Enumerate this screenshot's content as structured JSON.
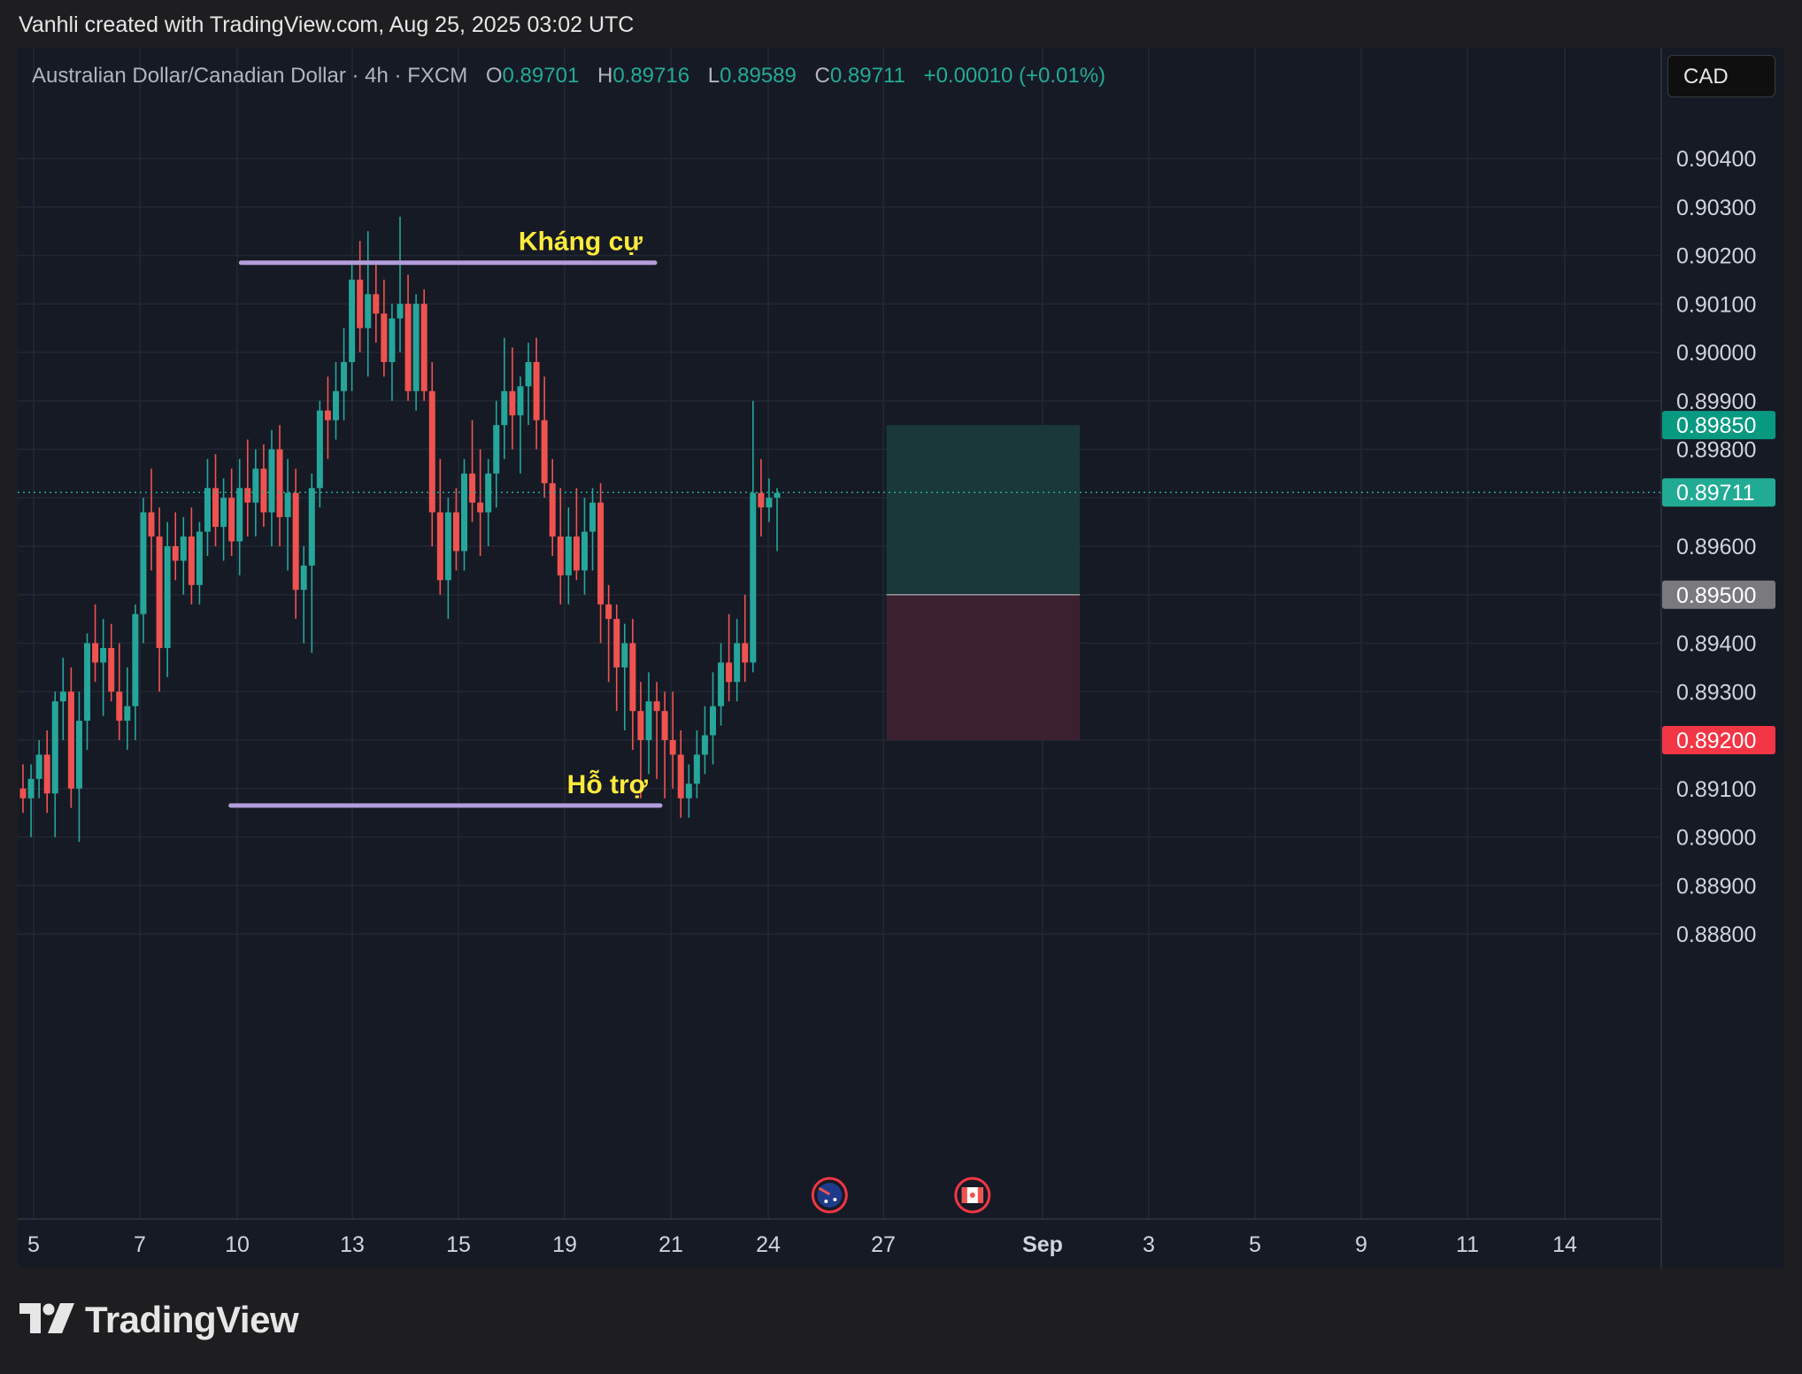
{
  "caption": "Vanhli created with TradingView.com, Aug 25, 2025 03:02 UTC",
  "legend": {
    "symbol": "Australian Dollar/Canadian Dollar · 4h · FXCM",
    "o_label": "O",
    "o": "0.89701",
    "h_label": "H",
    "h": "0.89716",
    "l_label": "L",
    "l": "0.89589",
    "c_label": "C",
    "c": "0.89711",
    "change": "+0.00010 (+0.01%)"
  },
  "currency": "CAD",
  "brand": "TradingView",
  "icons": [
    "australia-flag-event-icon",
    "canada-flag-event-icon",
    "tradingview-logo-icon"
  ],
  "colors": {
    "up": "#26a69a",
    "down": "#ef5350",
    "background": "#161a25",
    "level_line": "#b39ddb",
    "annotation": "#ffeb3b",
    "target_zone": "#1a3a3a",
    "stop_zone": "#3d2230"
  },
  "chart_data": {
    "type": "candlestick",
    "title": "Australian Dollar/Canadian Dollar · 4h · FXCM",
    "y_range": [
      0.8876,
      0.9048
    ],
    "y_ticks": [
      "0.90400",
      "0.90300",
      "0.90200",
      "0.90100",
      "0.90000",
      "0.89900",
      "0.89800",
      "0.89600",
      "0.89400",
      "0.89300",
      "0.89100",
      "0.89000",
      "0.88900",
      "0.88800"
    ],
    "x_ticks": [
      {
        "label": "5",
        "day": 5
      },
      {
        "label": "7",
        "day": 7
      },
      {
        "label": "10",
        "day": 10
      },
      {
        "label": "13",
        "day": 13
      },
      {
        "label": "15",
        "day": 15
      },
      {
        "label": "19",
        "day": 19
      },
      {
        "label": "21",
        "day": 21
      },
      {
        "label": "24",
        "day": 24
      },
      {
        "label": "27",
        "day": 27
      },
      {
        "label": "Sep",
        "day": 32,
        "bold": true
      },
      {
        "label": "3",
        "day": 34
      },
      {
        "label": "5",
        "day": 36
      },
      {
        "label": "9",
        "day": 38
      },
      {
        "label": "11",
        "day": 40
      },
      {
        "label": "14",
        "day": 42
      }
    ],
    "price_tags": [
      {
        "value": 0.8985,
        "label": "0.89850",
        "color": "#089981"
      },
      {
        "value": 0.89711,
        "label": "0.89711",
        "color": "#22ab94"
      },
      {
        "value": 0.895,
        "label": "0.89500",
        "color": "#7a7a7e"
      },
      {
        "value": 0.892,
        "label": "0.89200",
        "color": "#f23645"
      }
    ],
    "last_price": 0.89711,
    "levels": [
      {
        "label": "Kháng cự",
        "value": 0.90185,
        "x_from": 10.1,
        "x_to": 20.7
      },
      {
        "label": "Hỗ trợ",
        "value": 0.89065,
        "x_from": 9.8,
        "x_to": 20.8
      }
    ],
    "position": {
      "x_from": 27.1,
      "x_to": 32.7,
      "target": 0.8985,
      "entry": 0.895,
      "stop": 0.892
    },
    "events": [
      {
        "icon": "australia-flag-event-icon",
        "day": 25.6
      },
      {
        "icon": "canada-flag-event-icon",
        "day": 29.8
      }
    ],
    "candles": [
      [
        0.891,
        0.8915,
        0.8905,
        0.8908
      ],
      [
        0.8908,
        0.8915,
        0.89,
        0.8912
      ],
      [
        0.8912,
        0.892,
        0.8908,
        0.8917
      ],
      [
        0.8917,
        0.8922,
        0.8905,
        0.8909
      ],
      [
        0.8909,
        0.893,
        0.89,
        0.8928
      ],
      [
        0.8928,
        0.8937,
        0.892,
        0.893
      ],
      [
        0.893,
        0.8935,
        0.8906,
        0.891
      ],
      [
        0.891,
        0.893,
        0.8899,
        0.8924
      ],
      [
        0.8924,
        0.8942,
        0.8918,
        0.894
      ],
      [
        0.894,
        0.8948,
        0.8932,
        0.8936
      ],
      [
        0.8936,
        0.8945,
        0.8925,
        0.8939
      ],
      [
        0.8939,
        0.8944,
        0.8928,
        0.893
      ],
      [
        0.893,
        0.894,
        0.892,
        0.8924
      ],
      [
        0.8924,
        0.8935,
        0.8918,
        0.8927
      ],
      [
        0.8927,
        0.8948,
        0.892,
        0.8946
      ],
      [
        0.8946,
        0.897,
        0.894,
        0.8967
      ],
      [
        0.8967,
        0.8976,
        0.8955,
        0.8962
      ],
      [
        0.8962,
        0.8968,
        0.893,
        0.8939
      ],
      [
        0.8939,
        0.8965,
        0.8933,
        0.896
      ],
      [
        0.896,
        0.8967,
        0.8953,
        0.8957
      ],
      [
        0.8957,
        0.8966,
        0.895,
        0.8962
      ],
      [
        0.8962,
        0.8968,
        0.8948,
        0.8952
      ],
      [
        0.8952,
        0.8965,
        0.8948,
        0.8963
      ],
      [
        0.8963,
        0.8978,
        0.8958,
        0.8972
      ],
      [
        0.8972,
        0.8979,
        0.896,
        0.8964
      ],
      [
        0.8964,
        0.8974,
        0.8957,
        0.897
      ],
      [
        0.897,
        0.8976,
        0.8958,
        0.8961
      ],
      [
        0.8961,
        0.8978,
        0.8954,
        0.8972
      ],
      [
        0.8972,
        0.8982,
        0.8962,
        0.8969
      ],
      [
        0.8969,
        0.898,
        0.8962,
        0.8976
      ],
      [
        0.8976,
        0.8981,
        0.8964,
        0.8967
      ],
      [
        0.8967,
        0.8984,
        0.896,
        0.898
      ],
      [
        0.898,
        0.8985,
        0.896,
        0.8966
      ],
      [
        0.8966,
        0.8978,
        0.8955,
        0.8971
      ],
      [
        0.8971,
        0.8976,
        0.8945,
        0.8951
      ],
      [
        0.8951,
        0.896,
        0.894,
        0.8956
      ],
      [
        0.8956,
        0.8975,
        0.8938,
        0.8972
      ],
      [
        0.8972,
        0.899,
        0.8968,
        0.8988
      ],
      [
        0.8988,
        0.8995,
        0.8978,
        0.8986
      ],
      [
        0.8986,
        0.8998,
        0.8982,
        0.8992
      ],
      [
        0.8992,
        0.9005,
        0.8986,
        0.8998
      ],
      [
        0.8998,
        0.9018,
        0.8992,
        0.9015
      ],
      [
        0.9015,
        0.9023,
        0.9,
        0.9005
      ],
      [
        0.9005,
        0.9025,
        0.8995,
        0.9012
      ],
      [
        0.9012,
        0.9018,
        0.9002,
        0.9008
      ],
      [
        0.9008,
        0.9015,
        0.8995,
        0.8998
      ],
      [
        0.8998,
        0.901,
        0.899,
        0.9007
      ],
      [
        0.9007,
        0.9028,
        0.9,
        0.901
      ],
      [
        0.901,
        0.9016,
        0.899,
        0.8992
      ],
      [
        0.8992,
        0.9012,
        0.8988,
        0.901
      ],
      [
        0.901,
        0.9013,
        0.899,
        0.8992
      ],
      [
        0.8992,
        0.8998,
        0.896,
        0.8967
      ],
      [
        0.8967,
        0.8978,
        0.895,
        0.8953
      ],
      [
        0.8953,
        0.897,
        0.8945,
        0.8967
      ],
      [
        0.8967,
        0.8972,
        0.8955,
        0.8959
      ],
      [
        0.8959,
        0.8978,
        0.8955,
        0.8975
      ],
      [
        0.8975,
        0.8986,
        0.8965,
        0.8969
      ],
      [
        0.8969,
        0.898,
        0.8958,
        0.8967
      ],
      [
        0.8967,
        0.8978,
        0.896,
        0.8975
      ],
      [
        0.8975,
        0.899,
        0.8968,
        0.8985
      ],
      [
        0.8985,
        0.9003,
        0.8978,
        0.8992
      ],
      [
        0.8992,
        0.9001,
        0.898,
        0.8987
      ],
      [
        0.8987,
        0.8995,
        0.8975,
        0.8993
      ],
      [
        0.8993,
        0.9002,
        0.8985,
        0.8998
      ],
      [
        0.8998,
        0.9003,
        0.898,
        0.8986
      ],
      [
        0.8986,
        0.8995,
        0.897,
        0.8973
      ],
      [
        0.8973,
        0.8978,
        0.8958,
        0.8962
      ],
      [
        0.8962,
        0.8972,
        0.8948,
        0.8954
      ],
      [
        0.8954,
        0.8968,
        0.8948,
        0.8962
      ],
      [
        0.8962,
        0.8972,
        0.8953,
        0.8955
      ],
      [
        0.8955,
        0.897,
        0.895,
        0.8963
      ],
      [
        0.8963,
        0.8972,
        0.8955,
        0.8969
      ],
      [
        0.8969,
        0.8973,
        0.894,
        0.8948
      ],
      [
        0.8948,
        0.8952,
        0.8932,
        0.8945
      ],
      [
        0.8945,
        0.8948,
        0.8926,
        0.8935
      ],
      [
        0.8935,
        0.8944,
        0.8922,
        0.894
      ],
      [
        0.894,
        0.8945,
        0.8918,
        0.8926
      ],
      [
        0.8926,
        0.8932,
        0.8908,
        0.892
      ],
      [
        0.892,
        0.8934,
        0.8913,
        0.8928
      ],
      [
        0.8928,
        0.8932,
        0.8912,
        0.8926
      ],
      [
        0.8926,
        0.893,
        0.8908,
        0.892
      ],
      [
        0.892,
        0.893,
        0.891,
        0.8917
      ],
      [
        0.8917,
        0.8922,
        0.8904,
        0.8908
      ],
      [
        0.8908,
        0.8915,
        0.8904,
        0.8911
      ],
      [
        0.8911,
        0.8922,
        0.8908,
        0.8917
      ],
      [
        0.8917,
        0.8927,
        0.8913,
        0.8921
      ],
      [
        0.8921,
        0.8934,
        0.8915,
        0.8927
      ],
      [
        0.8927,
        0.894,
        0.8923,
        0.8936
      ],
      [
        0.8936,
        0.8946,
        0.8928,
        0.8932
      ],
      [
        0.8932,
        0.8945,
        0.8928,
        0.894
      ],
      [
        0.894,
        0.895,
        0.8932,
        0.8936
      ],
      [
        0.8936,
        0.899,
        0.8934,
        0.8971
      ],
      [
        0.8971,
        0.8978,
        0.8962,
        0.8968
      ],
      [
        0.8968,
        0.8974,
        0.8965,
        0.897
      ],
      [
        0.897,
        0.8972,
        0.8959,
        0.8971
      ]
    ]
  }
}
